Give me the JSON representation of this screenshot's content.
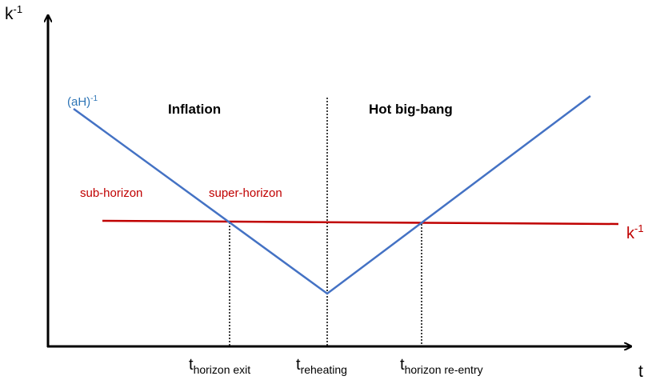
{
  "axes": {
    "y_label": {
      "base": "k",
      "sup": "-1"
    },
    "x_label": "t"
  },
  "regions": [
    "Inflation",
    "Hot big-bang"
  ],
  "lines": {
    "hubble": {
      "base": "(aH)",
      "sup": "-1"
    },
    "k": {
      "base": "k",
      "sup": "-1"
    }
  },
  "zones": [
    "sub-horizon",
    "super-horizon"
  ],
  "times": [
    {
      "base": "t",
      "sub": "horizon exit"
    },
    {
      "base": "t",
      "sub": "reheating"
    },
    {
      "base": "t",
      "sub": "horizon re-entry"
    }
  ]
}
